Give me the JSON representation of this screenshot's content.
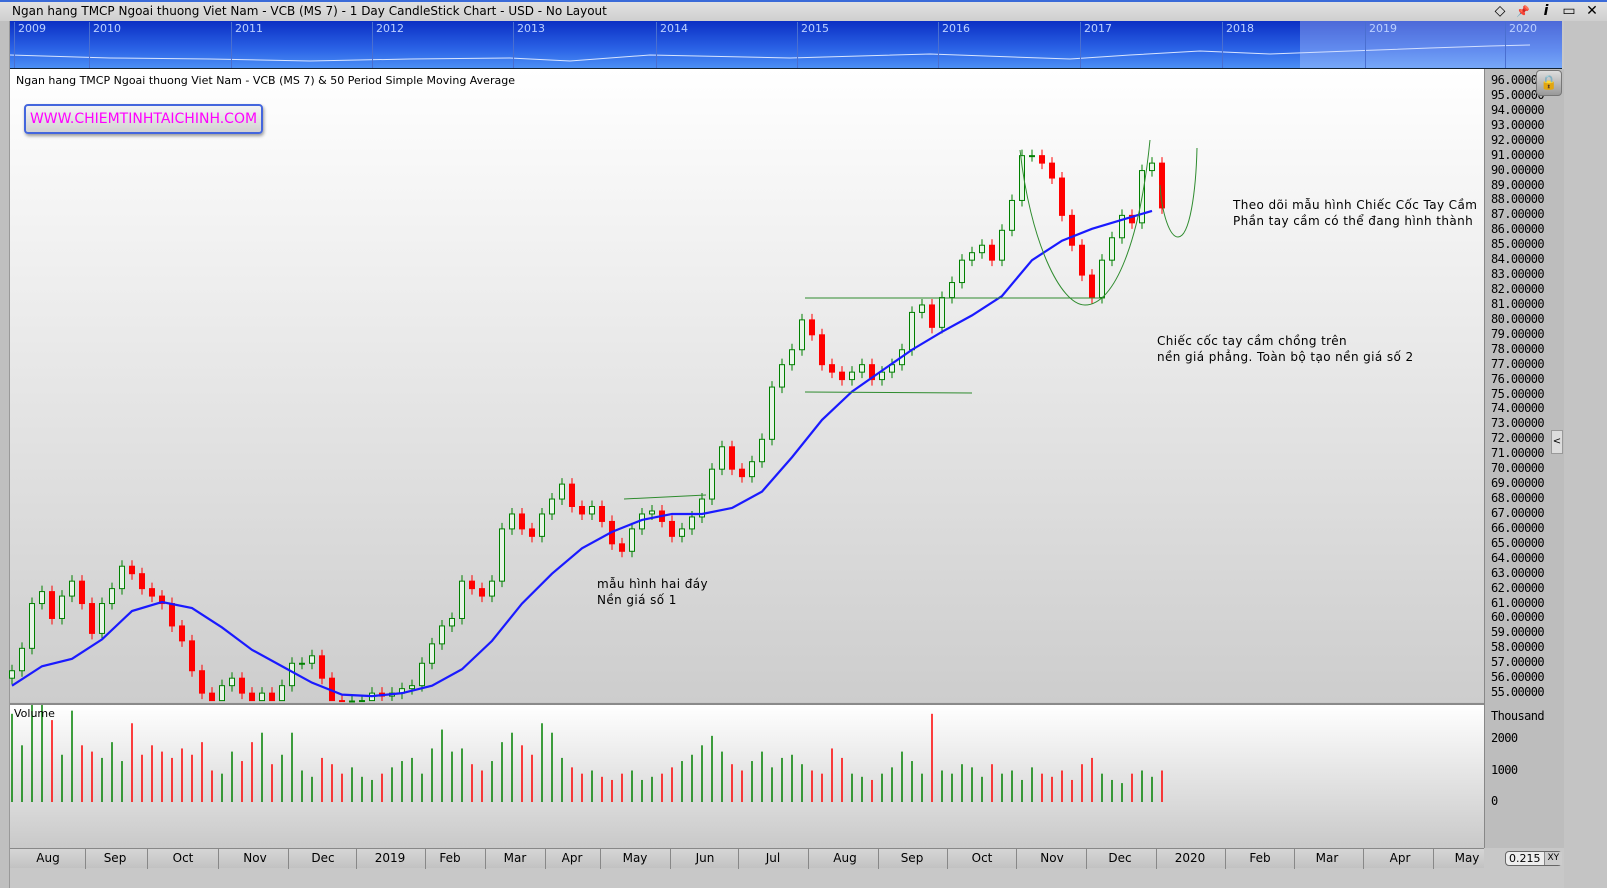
{
  "window": {
    "title": "Ngan hang TMCP Ngoai thuong Viet Nam - VCB (MS 7) - 1 Day CandleStick Chart - USD - No Layout",
    "buttons": [
      "◇",
      "📌",
      "i",
      "▭",
      "✕"
    ]
  },
  "navigator": {
    "years": [
      "2009",
      "2010",
      "2011",
      "2012",
      "2013",
      "2014",
      "2015",
      "2016",
      "2017",
      "2018",
      "2019",
      "2020"
    ]
  },
  "watermark": "WWW.CHIEMTINHTAICHINH.COM",
  "annotations": {
    "double_bottom": [
      "mẫu hình hai đáy",
      "Nền giá số 1"
    ],
    "cup_on_base": [
      "Chiếc cốc tay cầm chồng trên",
      "nền giá phẳng. Toàn bộ tạo nền giá số 2"
    ],
    "cup_handle": [
      "Theo dõi mẫu hình Chiếc Cốc Tay Cầm",
      "Phần tay cầm có thể đang hình thành"
    ]
  },
  "zoom": {
    "value": "0.215",
    "mode": "XY"
  },
  "colors": {
    "up": "#008000",
    "down": "#ff0000",
    "sma": "#1a1aff",
    "trendline": "#2e8b2e",
    "accent": "#3a6ad8"
  },
  "chart_data": {
    "type": "candlestick",
    "title": "Ngan hang TMCP Ngoai thuong Viet Nam - VCB (MS 7) & 50 Period Simple Moving Average",
    "ylim": [
      55,
      96
    ],
    "y_ticks": [
      "96.00000",
      "95.00000",
      "94.00000",
      "93.00000",
      "92.00000",
      "91.00000",
      "90.00000",
      "89.00000",
      "88.00000",
      "87.00000",
      "86.00000",
      "85.00000",
      "84.00000",
      "83.00000",
      "82.00000",
      "81.00000",
      "80.00000",
      "79.00000",
      "78.00000",
      "77.00000",
      "76.00000",
      "75.00000",
      "74.00000",
      "73.00000",
      "72.00000",
      "71.00000",
      "70.00000",
      "69.00000",
      "68.00000",
      "67.00000",
      "66.00000",
      "65.00000",
      "64.00000",
      "63.00000",
      "62.00000",
      "61.00000",
      "60.00000",
      "59.00000",
      "58.00000",
      "57.00000",
      "56.00000",
      "55.00000"
    ],
    "x_ticks": [
      "Aug",
      "Sep",
      "Oct",
      "Nov",
      "Dec",
      "2019",
      "Feb",
      "Mar",
      "Apr",
      "May",
      "Jun",
      "Jul",
      "Aug",
      "Sep",
      "Oct",
      "Nov",
      "Dec",
      "2020",
      "Feb",
      "Mar",
      "Apr",
      "May"
    ],
    "close": [
      56.5,
      58,
      61,
      61.8,
      60,
      61.5,
      62.5,
      61,
      59,
      61,
      62,
      63.5,
      63,
      62,
      61.5,
      61,
      59.5,
      58.5,
      56.5,
      55,
      54.5,
      55.5,
      56,
      55,
      54.5,
      55,
      54.5,
      55.5,
      57,
      57,
      57.5,
      56,
      54.5,
      54,
      54,
      54.5,
      55,
      54.8,
      55,
      55.3,
      55.5,
      57,
      58.3,
      59.5,
      60,
      62.5,
      62,
      61.5,
      62.5,
      66,
      67,
      66,
      65.5,
      67,
      68,
      69,
      67.5,
      67,
      67.5,
      66.5,
      65,
      64.5,
      66,
      67,
      67.2,
      66.5,
      65.5,
      66,
      66.8,
      68,
      70,
      71.5,
      70,
      69.5,
      70.5,
      72,
      75.5,
      77,
      78,
      80,
      79,
      77,
      76.5,
      76,
      76.5,
      77,
      76,
      76.5,
      77,
      78,
      80.5,
      81,
      79.5,
      81.5,
      82.5,
      84,
      84.5,
      85,
      84,
      86,
      88,
      91,
      91,
      90.5,
      89.5,
      87,
      85,
      83,
      81.5,
      84,
      85.5,
      87,
      86.5,
      90,
      90.5,
      87.5
    ],
    "sma50": [
      55.5,
      56.8,
      57.3,
      58.6,
      60.5,
      61.1,
      60.7,
      59.4,
      57.9,
      56.8,
      55.7,
      54.9,
      54.8,
      55,
      55.5,
      56.6,
      58.5,
      61,
      63,
      64.7,
      65.8,
      66.6,
      67,
      67,
      67.4,
      68.5,
      70.8,
      73.3,
      75.2,
      76.6,
      78,
      79.2,
      80.3,
      81.6,
      84,
      85.3,
      86.1,
      86.7,
      87.3
    ],
    "volume": {
      "label": "Volume",
      "unit": "Thousand",
      "ticks": [
        "2000",
        "1000",
        "0"
      ],
      "values": [
        2800,
        1800,
        3100,
        3100,
        2600,
        1500,
        2900,
        1800,
        1600,
        1400,
        1900,
        1300,
        2500,
        1500,
        1800,
        1600,
        1400,
        1700,
        1500,
        1900,
        1000,
        900,
        1600,
        1300,
        1900,
        2200,
        1200,
        1500,
        2200,
        1000,
        800,
        1400,
        1200,
        900,
        1100,
        800,
        700,
        900,
        1100,
        1300,
        1400,
        900,
        1700,
        2300,
        1600,
        1700,
        1200,
        1000,
        1300,
        1900,
        2200,
        1800,
        1500,
        2500,
        2200,
        1400,
        1100,
        900,
        1000,
        800,
        700,
        900,
        1000,
        700,
        800,
        900,
        1100,
        1300,
        1500,
        1800,
        2100,
        1600,
        1200,
        1000,
        1300,
        1600,
        1100,
        1400,
        1500,
        1200,
        1000,
        900,
        1700,
        1400,
        900,
        800,
        700,
        900,
        1100,
        1600,
        1300,
        900,
        2800,
        1000,
        900,
        1200,
        1100,
        800,
        1200,
        900,
        1000,
        700,
        1100,
        900,
        800,
        1000,
        700,
        1200,
        1400,
        900,
        700,
        600,
        900,
        1000,
        800,
        1000
      ]
    }
  }
}
